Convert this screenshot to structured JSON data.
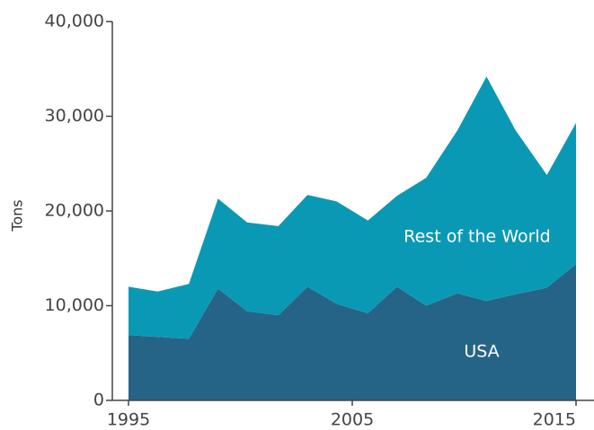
{
  "chart_data": {
    "type": "area",
    "y_label": "Tons",
    "stacked": true,
    "x": [
      1995,
      1996.3,
      1997.7,
      1999,
      2000.3,
      2001.7,
      2003,
      2004.3,
      2005.7,
      2007,
      2008.3,
      2009.7,
      2011,
      2012.3,
      2013.7,
      2015
    ],
    "series": [
      {
        "name": "USA",
        "color": "#266487",
        "values": [
          6900,
          6700,
          6500,
          11800,
          9400,
          9000,
          12000,
          10200,
          9200,
          12000,
          10000,
          11300,
          10500,
          11200,
          11900,
          14400
        ]
      },
      {
        "name": "Rest of the World",
        "color": "#0a99b5",
        "values": [
          5100,
          4800,
          5800,
          9500,
          9400,
          9400,
          9700,
          10800,
          9800,
          9600,
          13500,
          17200,
          23700,
          17300,
          11900,
          14900
        ]
      }
    ],
    "xlim": [
      1995,
      2015
    ],
    "xticks": [
      1995,
      2005,
      2015
    ],
    "ylim": [
      0,
      40000
    ],
    "yticks": [
      0,
      {
        "value": 10000,
        "label": "10,000"
      },
      {
        "value": 20000,
        "label": "20,000"
      },
      {
        "value": 30000,
        "label": "30,000"
      },
      {
        "value": 40000,
        "label": "40,000"
      }
    ]
  }
}
